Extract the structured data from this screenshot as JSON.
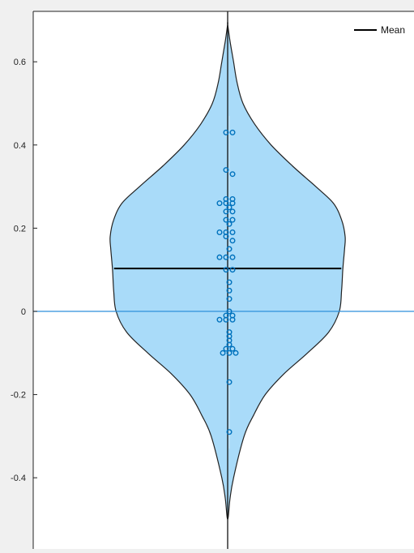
{
  "chart_data": {
    "type": "violin",
    "title": "",
    "xlabel": "",
    "ylabel": "",
    "ylim": [
      -0.58,
      0.72
    ],
    "yticks": [
      -0.4,
      -0.2,
      0,
      0.2,
      0.4,
      0.6
    ],
    "ytick_labels": [
      "-0.4",
      "-0.2",
      "0",
      "0.2",
      "0.4",
      "0.6"
    ],
    "legend": {
      "position": "top-right",
      "entries": [
        "Mean"
      ]
    },
    "reference_line_y": 0,
    "mean": 0.103,
    "range": [
      -0.5,
      0.69
    ],
    "density_profile": [
      {
        "y": -0.5,
        "w": 0.0
      },
      {
        "y": -0.45,
        "w": 0.02
      },
      {
        "y": -0.4,
        "w": 0.05
      },
      {
        "y": -0.3,
        "w": 0.14
      },
      {
        "y": -0.25,
        "w": 0.22
      },
      {
        "y": -0.2,
        "w": 0.32
      },
      {
        "y": -0.15,
        "w": 0.48
      },
      {
        "y": -0.1,
        "w": 0.68
      },
      {
        "y": -0.05,
        "w": 0.86
      },
      {
        "y": 0.0,
        "w": 0.95
      },
      {
        "y": 0.05,
        "w": 0.97
      },
      {
        "y": 0.1,
        "w": 0.98
      },
      {
        "y": 0.15,
        "w": 0.995
      },
      {
        "y": 0.18,
        "w": 1.0
      },
      {
        "y": 0.22,
        "w": 0.97
      },
      {
        "y": 0.26,
        "w": 0.9
      },
      {
        "y": 0.3,
        "w": 0.75
      },
      {
        "y": 0.35,
        "w": 0.55
      },
      {
        "y": 0.4,
        "w": 0.37
      },
      {
        "y": 0.45,
        "w": 0.23
      },
      {
        "y": 0.5,
        "w": 0.13
      },
      {
        "y": 0.55,
        "w": 0.08
      },
      {
        "y": 0.6,
        "w": 0.05
      },
      {
        "y": 0.65,
        "w": 0.02
      },
      {
        "y": 0.69,
        "w": 0.0
      }
    ],
    "points": [
      {
        "y": 0.43,
        "dx": -1
      },
      {
        "y": 0.43,
        "dx": 1
      },
      {
        "y": 0.34,
        "dx": -1
      },
      {
        "y": 0.33,
        "dx": 1
      },
      {
        "y": 0.27,
        "dx": -1
      },
      {
        "y": 0.27,
        "dx": 1
      },
      {
        "y": 0.26,
        "dx": -3
      },
      {
        "y": 0.26,
        "dx": -1
      },
      {
        "y": 0.26,
        "dx": 1
      },
      {
        "y": 0.25,
        "dx": 0
      },
      {
        "y": 0.24,
        "dx": -1
      },
      {
        "y": 0.24,
        "dx": 1
      },
      {
        "y": 0.22,
        "dx": -1
      },
      {
        "y": 0.22,
        "dx": 1
      },
      {
        "y": 0.21,
        "dx": 0
      },
      {
        "y": 0.19,
        "dx": -3
      },
      {
        "y": 0.19,
        "dx": -1
      },
      {
        "y": 0.19,
        "dx": 1
      },
      {
        "y": 0.18,
        "dx": -1
      },
      {
        "y": 0.17,
        "dx": 1
      },
      {
        "y": 0.15,
        "dx": 0
      },
      {
        "y": 0.13,
        "dx": -3
      },
      {
        "y": 0.13,
        "dx": -1
      },
      {
        "y": 0.13,
        "dx": 1
      },
      {
        "y": 0.1,
        "dx": -1
      },
      {
        "y": 0.1,
        "dx": 1
      },
      {
        "y": 0.07,
        "dx": 0
      },
      {
        "y": 0.05,
        "dx": 0
      },
      {
        "y": 0.03,
        "dx": 0
      },
      {
        "y": 0.0,
        "dx": 0
      },
      {
        "y": -0.01,
        "dx": -1
      },
      {
        "y": -0.01,
        "dx": 1
      },
      {
        "y": -0.02,
        "dx": -3
      },
      {
        "y": -0.02,
        "dx": -1
      },
      {
        "y": -0.02,
        "dx": 1
      },
      {
        "y": -0.05,
        "dx": 0
      },
      {
        "y": -0.06,
        "dx": 0
      },
      {
        "y": -0.07,
        "dx": 0
      },
      {
        "y": -0.08,
        "dx": 0
      },
      {
        "y": -0.09,
        "dx": -1
      },
      {
        "y": -0.09,
        "dx": 1
      },
      {
        "y": -0.1,
        "dx": -2
      },
      {
        "y": -0.1,
        "dx": 0
      },
      {
        "y": -0.1,
        "dx": 2
      },
      {
        "y": -0.17,
        "dx": 0
      },
      {
        "y": -0.29,
        "dx": 0
      }
    ],
    "colors": {
      "violin_fill": "#a9dbf9",
      "violin_edge": "#222222",
      "points": "#0072bd",
      "mean_line": "#000000",
      "zero_line": "#2f8fdc",
      "axes_background": "#ffffff",
      "figure_background": "#f0f0f0"
    }
  }
}
